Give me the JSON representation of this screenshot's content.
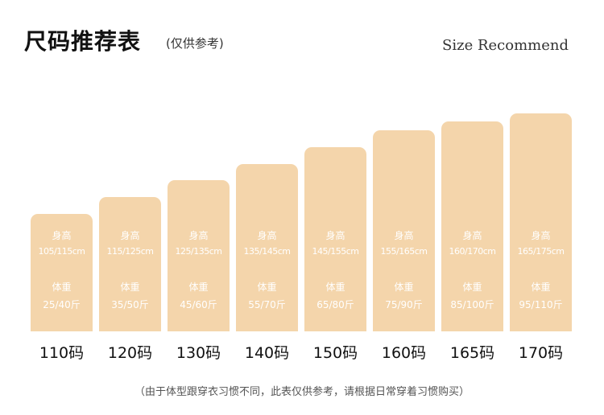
{
  "header": {
    "title": "尺码推荐表",
    "subtitle": "(仅供参考)",
    "subtitle_en": "Size Recommend"
  },
  "footnote": "（由于体型跟穿衣习惯不同，此表仅供参考，请根据日常穿着习惯购买）",
  "colors": {
    "bar": "#f4d5ab",
    "bar_text": "#ffffff",
    "size_text": "#111111"
  },
  "chart_data": {
    "type": "bar",
    "categories": [
      "110码",
      "120码",
      "130码",
      "140码",
      "150码",
      "160码",
      "165码",
      "170码"
    ],
    "height_label": "身高",
    "weight_label": "体重",
    "heights": [
      "105/115cm",
      "115/125cm",
      "125/135cm",
      "135/145cm",
      "145/155cm",
      "155/165cm",
      "160/170cm",
      "165/175cm"
    ],
    "weights": [
      "25/40斤",
      "35/50斤",
      "45/60斤",
      "55/70斤",
      "65/80斤",
      "75/90斤",
      "85/100斤",
      "95/110斤"
    ],
    "values": [
      110,
      120,
      130,
      140,
      150,
      160,
      165,
      170
    ]
  }
}
